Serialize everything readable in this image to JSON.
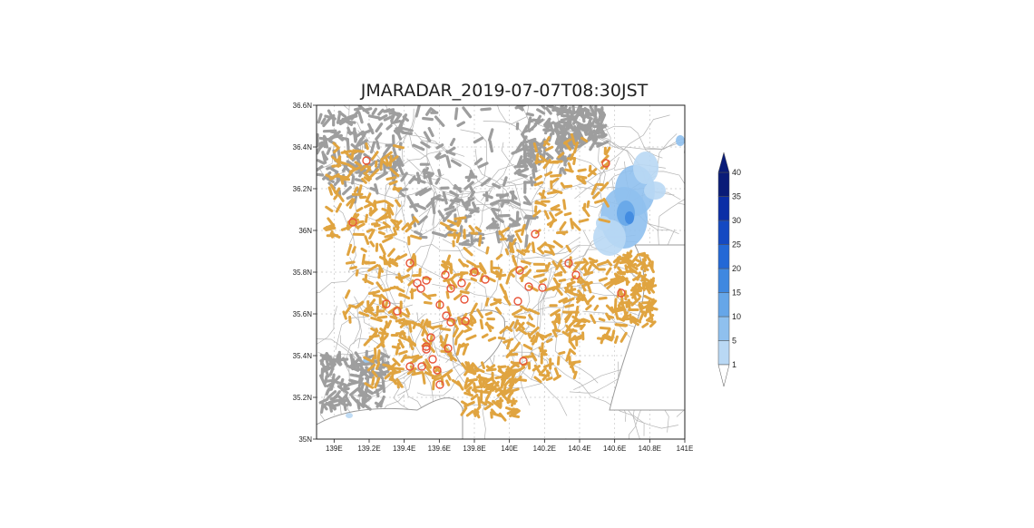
{
  "title": "JMARADAR_2019-07-07T08:30JST",
  "map": {
    "lat_range": [
      35.0,
      36.6
    ],
    "lon_range": [
      138.9,
      141.0
    ],
    "y_ticks": [
      "36.6N",
      "36.4N",
      "36.2N",
      "36N",
      "35.8N",
      "35.6N",
      "35.4N",
      "35.2N",
      "35N"
    ],
    "x_ticks": [
      "139E",
      "139.2E",
      "139.4E",
      "139.6E",
      "139.8E",
      "140E",
      "140.2E",
      "140.4E",
      "140.6E",
      "140.8E",
      "141E"
    ],
    "colors": {
      "road_gray": "#9e9e9e",
      "road_orange": "#e0a440",
      "circle": "#e8553a",
      "boundary": "#b4b4b4",
      "grid": "#c8c8c8"
    }
  },
  "colorbar": {
    "levels": [
      "1",
      "5",
      "10",
      "15",
      "20",
      "25",
      "30",
      "35",
      "40"
    ],
    "colors": [
      "#e0eefa",
      "#b9d8f4",
      "#8fc0ee",
      "#66a6e8",
      "#3f88e0",
      "#2368d6",
      "#1449c2",
      "#0b2ea6",
      "#0a1c78"
    ]
  }
}
